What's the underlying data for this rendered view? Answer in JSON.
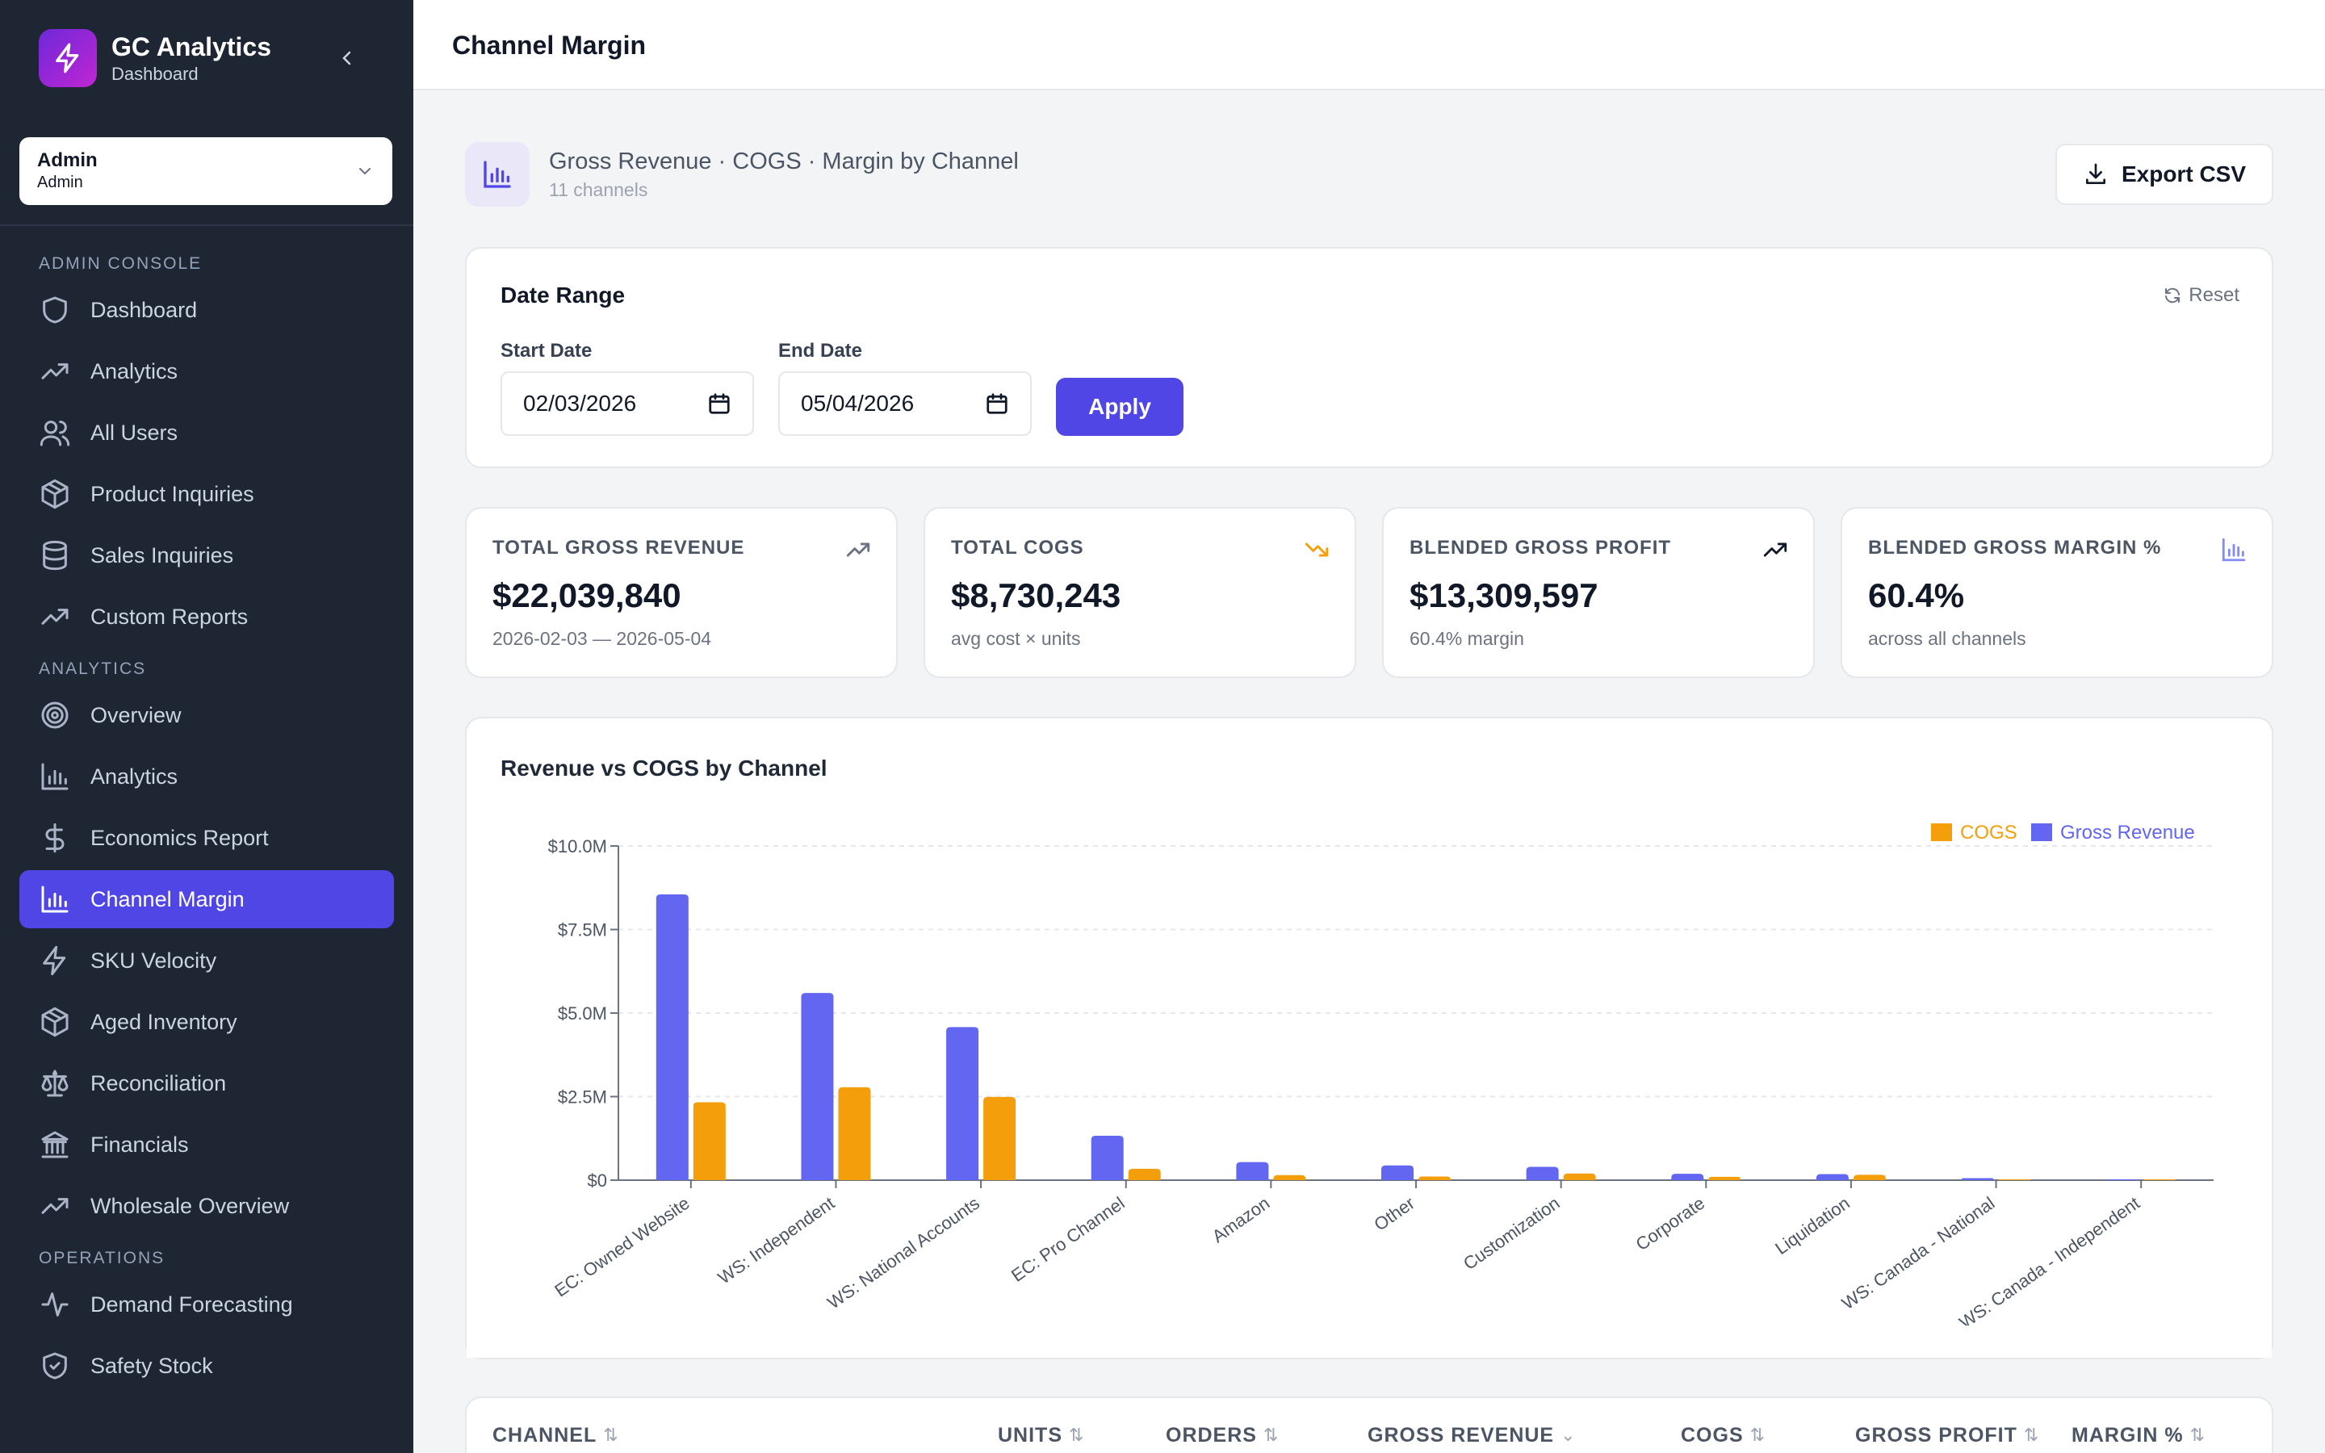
{
  "brand": {
    "title": "GC Analytics",
    "subtitle": "Dashboard"
  },
  "user": {
    "name": "Admin",
    "role": "Admin"
  },
  "nav": {
    "admin_section": "ADMIN CONSOLE",
    "admin_items": [
      {
        "label": "Dashboard",
        "icon": "shield-icon"
      },
      {
        "label": "Analytics",
        "icon": "trending-up-icon"
      },
      {
        "label": "All Users",
        "icon": "users-icon"
      },
      {
        "label": "Product Inquiries",
        "icon": "package-icon"
      },
      {
        "label": "Sales Inquiries",
        "icon": "database-icon"
      },
      {
        "label": "Custom Reports",
        "icon": "trending-up-icon"
      }
    ],
    "analytics_section": "ANALYTICS",
    "analytics_items": [
      {
        "label": "Overview",
        "icon": "target-icon"
      },
      {
        "label": "Analytics",
        "icon": "bar-chart-icon"
      },
      {
        "label": "Economics Report",
        "icon": "dollar-icon"
      },
      {
        "label": "Channel Margin",
        "icon": "bar-chart-icon",
        "active": true
      },
      {
        "label": "SKU Velocity",
        "icon": "lightning-icon"
      },
      {
        "label": "Aged Inventory",
        "icon": "package-icon"
      },
      {
        "label": "Reconciliation",
        "icon": "scale-icon"
      },
      {
        "label": "Financials",
        "icon": "bank-icon"
      },
      {
        "label": "Wholesale Overview",
        "icon": "trending-up-icon"
      }
    ],
    "operations_section": "OPERATIONS",
    "operations_items": [
      {
        "label": "Demand Forecasting",
        "icon": "activity-icon"
      },
      {
        "label": "Safety Stock",
        "icon": "shield-check-icon"
      }
    ]
  },
  "header": {
    "title": "Channel Margin"
  },
  "page_header": {
    "title": "Gross Revenue · COGS · Margin by Channel",
    "subtitle": "11 channels",
    "export_label": "Export CSV"
  },
  "date_range": {
    "title": "Date Range",
    "reset_label": "Reset",
    "start_label": "Start Date",
    "start_value": "02/03/2026",
    "end_label": "End Date",
    "end_value": "05/04/2026",
    "apply_label": "Apply"
  },
  "kpis": [
    {
      "label": "TOTAL GROSS REVENUE",
      "value": "$22,039,840",
      "sub": "2026-02-03 — 2026-05-04",
      "icon": "trending-up-icon",
      "icon_color": "#6b7280"
    },
    {
      "label": "TOTAL COGS",
      "value": "$8,730,243",
      "sub": "avg cost × units",
      "icon": "trending-down-icon",
      "icon_color": "#f59e0b"
    },
    {
      "label": "BLENDED GROSS PROFIT",
      "value": "$13,309,597",
      "sub": "60.4% margin",
      "icon": "trending-up-icon",
      "icon_color": "#111827"
    },
    {
      "label": "BLENDED GROSS MARGIN %",
      "value": "60.4%",
      "sub": "across all channels",
      "icon": "bar-chart-icon",
      "icon_color": "#818cf8"
    }
  ],
  "chart_title": "Revenue vs COGS by Channel",
  "chart_data": {
    "type": "bar",
    "categories": [
      "EC: Owned Website",
      "WS: Independent",
      "WS: National Accounts",
      "EC: Pro Channel",
      "Amazon",
      "Other",
      "Customization",
      "Corporate",
      "Liquidation",
      "WS: Canada - National",
      "WS: Canada - Independent"
    ],
    "series": [
      {
        "name": "Gross Revenue",
        "color": "#6366f1",
        "values": [
          8550000,
          5600000,
          4580000,
          1330000,
          540000,
          440000,
          400000,
          190000,
          180000,
          60000,
          10000
        ]
      },
      {
        "name": "COGS",
        "color": "#f59e0b",
        "values": [
          2330000,
          2780000,
          2490000,
          340000,
          150000,
          110000,
          200000,
          100000,
          160000,
          25000,
          5000
        ]
      }
    ],
    "yticks": [
      "$0",
      "$2.5M",
      "$5.0M",
      "$7.5M",
      "$10.0M"
    ],
    "ylim": [
      0,
      10000000
    ],
    "legend": "top-right",
    "grid": true
  },
  "table": {
    "columns": [
      {
        "label": "CHANNEL",
        "sort": "⇅"
      },
      {
        "label": "UNITS",
        "sort": "⇅"
      },
      {
        "label": "ORDERS",
        "sort": "⇅"
      },
      {
        "label": "GROSS REVENUE",
        "sort": "⌄"
      },
      {
        "label": "COGS",
        "sort": "⇅"
      },
      {
        "label": "GROSS PROFIT",
        "sort": "⇅"
      },
      {
        "label": "MARGIN %",
        "sort": "⇅"
      }
    ]
  }
}
